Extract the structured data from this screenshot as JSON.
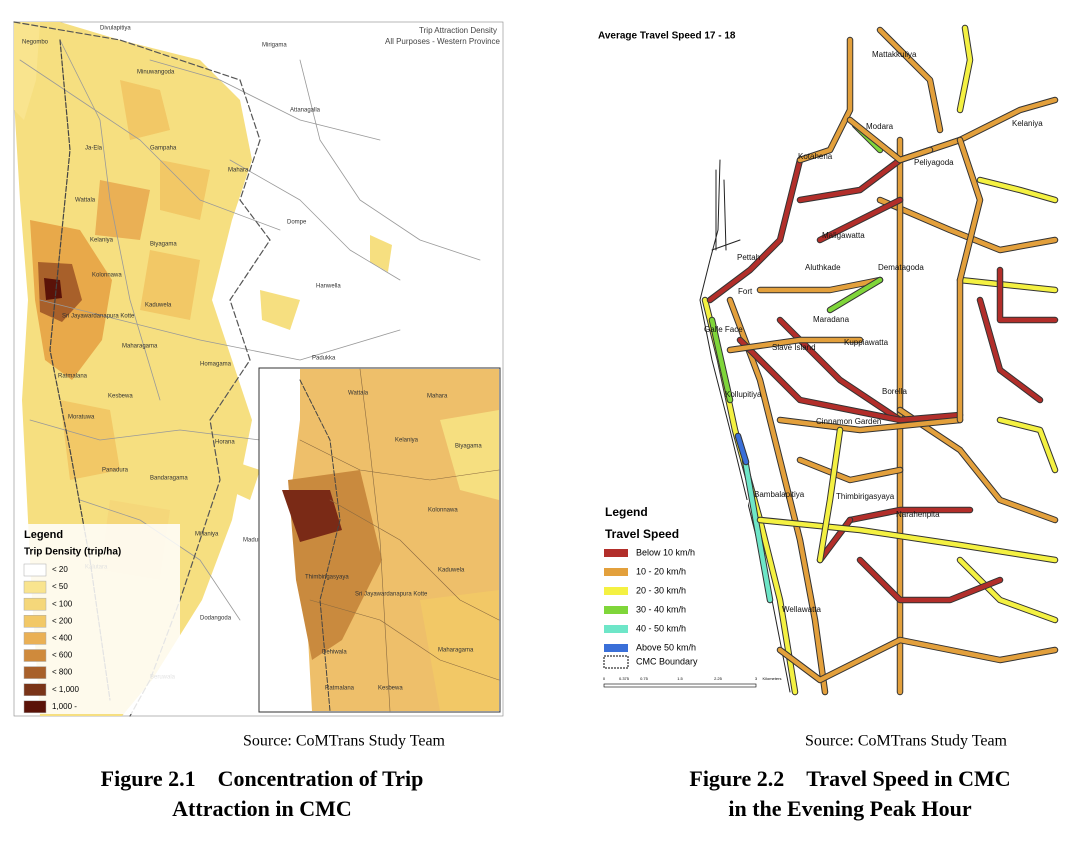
{
  "left_map": {
    "title": "Trip Attraction Density",
    "subtitle": "All Purposes - Western Province",
    "places": [
      "Negombo",
      "Divulapitiya",
      "Mirigama",
      "Minuwangoda",
      "Ja-Ela",
      "Gampaha",
      "Attanagalla",
      "Mahara",
      "Wattala",
      "Dompe",
      "Kelaniya",
      "Biyagama",
      "Kolonnawa",
      "Hanwella",
      "Kaduwela",
      "Sri Jayawardanapura Kotte",
      "Maharagama",
      "Homagama",
      "Padukka",
      "Ratmalana",
      "Kesbewa",
      "Moratuwa",
      "Panadura",
      "Bandaragama",
      "Horana",
      "Millaniya",
      "Madurawela",
      "Kalutara",
      "Dodangoda",
      "Beruwala"
    ],
    "inset_places": [
      "Wattala",
      "Mahara",
      "Kelaniya",
      "Biyagama",
      "Kolonnawa",
      "Kaduwela",
      "Sri Jayawardanapura Kotte",
      "Thimbirigasyaya",
      "Maharagama",
      "Dehiwala",
      "Ratmalana",
      "Kesbewa"
    ],
    "legend": {
      "title": "Legend",
      "subtitle": "Trip Density (trip/ha)",
      "items": [
        {
          "label": "< 20",
          "color": "#ffffff"
        },
        {
          "label": "< 50",
          "color": "#f9e48e"
        },
        {
          "label": "< 100",
          "color": "#f5d77a"
        },
        {
          "label": "< 200",
          "color": "#f2c866"
        },
        {
          "label": "< 400",
          "color": "#eab055"
        },
        {
          "label": "< 600",
          "color": "#cf8a3c"
        },
        {
          "label": "< 800",
          "color": "#a8602a"
        },
        {
          "label": "< 1,000",
          "color": "#7a3418"
        },
        {
          "label": "1,000 -",
          "color": "#5a1208"
        }
      ]
    },
    "source": "Source: CoMTrans Study Team",
    "caption": {
      "number": "Figure 2.1",
      "lines": [
        "Concentration of Trip",
        "Attraction in CMC"
      ]
    }
  },
  "right_map": {
    "title": "Average Travel Speed 17 - 18",
    "places": [
      "Mattakkuliya",
      "Modara",
      "Kelaniya",
      "Kotahena",
      "Peliyagoda",
      "Maligawatta",
      "Pettah",
      "Fort",
      "Aluthkade",
      "Dematagoda",
      "Galle Face",
      "Maradana",
      "Slave Island",
      "Kuppiawatta",
      "Kollupitiya",
      "Borella",
      "Cinnamon Garden",
      "Bambalapitiya",
      "Thimbirigasyaya",
      "Narahenpita",
      "Wellawatta"
    ],
    "legend": {
      "title": "Legend",
      "subtitle": "Travel Speed",
      "items": [
        {
          "label": "Below 10 km/h",
          "color": "#b22e2a"
        },
        {
          "label": "10 - 20 km/h",
          "color": "#e3a03c"
        },
        {
          "label": "20 - 30 km/h",
          "color": "#f4f142"
        },
        {
          "label": "30 - 40 km/h",
          "color": "#7fd63a"
        },
        {
          "label": "40 - 50 km/h",
          "color": "#6ee6c8"
        },
        {
          "label": "Above 50 km/h",
          "color": "#3a6fd8"
        }
      ],
      "boundary": "CMC Boundary"
    },
    "scale": [
      "0",
      "0.375",
      "0.75",
      "1.5",
      "2.25",
      "3",
      "Kilometers"
    ],
    "source": "Source: CoMTrans Study Team",
    "caption": {
      "number": "Figure 2.2",
      "lines": [
        "Travel Speed in CMC",
        "in the Evening Peak Hour"
      ]
    }
  }
}
